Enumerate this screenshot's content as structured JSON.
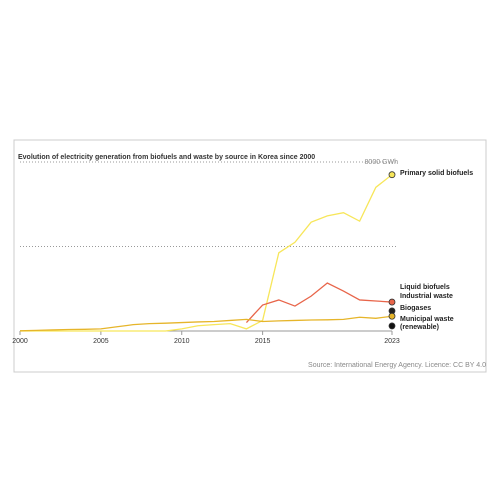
{
  "chart_data": {
    "type": "line",
    "title": "Evolution of electricity generation from biofuels and waste by source in Korea since 2000",
    "source": "Source: International Energy Agency. Licence: CC BY 4.0",
    "x": [
      2000,
      2001,
      2002,
      2003,
      2004,
      2005,
      2006,
      2007,
      2008,
      2009,
      2010,
      2011,
      2012,
      2013,
      2014,
      2015,
      2016,
      2017,
      2018,
      2019,
      2020,
      2021,
      2022,
      2023
    ],
    "xlim": [
      2000,
      2023
    ],
    "xticks": [
      2000,
      2005,
      2010,
      2015,
      2023
    ],
    "ylim": [
      0,
      8000
    ],
    "yticks": [
      4000,
      {
        "value": 8000,
        "label": "8000 GWh"
      }
    ],
    "grid": true,
    "series": [
      {
        "name": "Primary solid biofuels",
        "color": "#f7e65a",
        "values": [
          0,
          0,
          0,
          0,
          0,
          0,
          0,
          0,
          0,
          0,
          100,
          250,
          300,
          350,
          100,
          500,
          3700,
          4200,
          5150,
          5450,
          5600,
          5200,
          6800,
          7400
        ]
      },
      {
        "name": "Liquid biofuels",
        "color": "#e8654a",
        "values": [
          null,
          null,
          null,
          null,
          null,
          null,
          null,
          null,
          null,
          null,
          null,
          null,
          null,
          null,
          400,
          1230,
          1470,
          1180,
          1650,
          2270,
          1890,
          1470,
          1420,
          1370
        ]
      },
      {
        "name": "Industrial waste",
        "color": "#222222",
        "values": [
          null,
          null,
          null,
          null,
          null,
          null,
          null,
          null,
          null,
          null,
          null,
          null,
          null,
          null,
          null,
          null,
          null,
          null,
          null,
          null,
          null,
          null,
          null,
          950
        ]
      },
      {
        "name": "Biogases",
        "color": "#e6b52a",
        "values": [
          10,
          30,
          50,
          70,
          80,
          100,
          200,
          300,
          350,
          370,
          400,
          430,
          450,
          500,
          550,
          450,
          480,
          500,
          520,
          530,
          550,
          650,
          600,
          700
        ]
      },
      {
        "name": "Municipal waste (renewable)",
        "color": "#111111",
        "values": [
          null,
          null,
          null,
          null,
          null,
          null,
          null,
          null,
          null,
          null,
          null,
          null,
          null,
          null,
          null,
          null,
          null,
          null,
          null,
          null,
          null,
          null,
          null,
          240
        ]
      }
    ]
  }
}
